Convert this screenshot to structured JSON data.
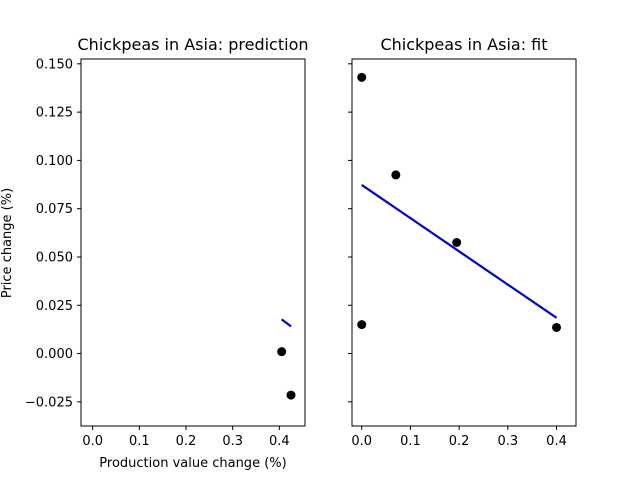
{
  "figure": {
    "ylabel": "Price change (%)"
  },
  "colors": {
    "points": "#000000",
    "fit_line": "#0000cc",
    "axes": "#000000",
    "background": "#ffffff"
  },
  "chart_data": [
    {
      "type": "scatter",
      "title": "Chickpeas in Asia: prediction",
      "xlabel": "Production value change (%)",
      "ylabel": "Price change (%)",
      "xlim": [
        -0.025,
        0.455
      ],
      "ylim": [
        -0.0375,
        0.1525
      ],
      "xticks": [
        0.0,
        0.1,
        0.2,
        0.3,
        0.4
      ],
      "xtick_labels": [
        "0.0",
        "0.1",
        "0.2",
        "0.3",
        "0.4"
      ],
      "yticks": [
        -0.025,
        0.0,
        0.025,
        0.05,
        0.075,
        0.1,
        0.125,
        0.15
      ],
      "ytick_labels": [
        "−0.025",
        "0.000",
        "0.025",
        "0.050",
        "0.075",
        "0.100",
        "0.125",
        "0.150"
      ],
      "grid": false,
      "series": [
        {
          "kind": "points",
          "x": [
            0.405,
            0.425
          ],
          "y": [
            0.001,
            -0.0215
          ]
        },
        {
          "kind": "line",
          "x": [
            0.405,
            0.425
          ],
          "y": [
            0.0177,
            0.0141
          ]
        }
      ]
    },
    {
      "type": "scatter",
      "title": "Chickpeas in Asia: fit",
      "xlabel": "",
      "ylabel": "",
      "xlim": [
        -0.02,
        0.44
      ],
      "ylim": [
        -0.0375,
        0.1525
      ],
      "xticks": [
        0.0,
        0.1,
        0.2,
        0.3,
        0.4
      ],
      "xtick_labels": [
        "0.0",
        "0.1",
        "0.2",
        "0.3",
        "0.4"
      ],
      "yticks": [
        -0.025,
        0.0,
        0.025,
        0.05,
        0.075,
        0.1,
        0.125,
        0.15
      ],
      "ytick_labels": [
        "",
        "",
        "",
        "",
        "",
        "",
        "",
        ""
      ],
      "grid": false,
      "series": [
        {
          "kind": "points",
          "x": [
            0.0,
            0.0,
            0.07,
            0.195,
            0.4
          ],
          "y": [
            0.143,
            0.015,
            0.0925,
            0.0575,
            0.0135
          ]
        },
        {
          "kind": "line",
          "x": [
            0.0,
            0.4
          ],
          "y": [
            0.0873,
            0.0185
          ]
        }
      ]
    }
  ]
}
